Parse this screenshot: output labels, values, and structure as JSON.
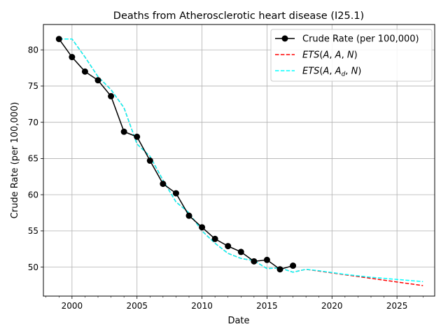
{
  "chart_data": {
    "type": "line",
    "title": "Deaths from Atherosclerotic heart disease (I25.1)",
    "xlabel": "Date",
    "ylabel": "Crude Rate (per 100,000)",
    "xlim": [
      1997.8,
      2027.9
    ],
    "ylim": [
      46.0,
      83.5
    ],
    "grid": true,
    "legend": "top-right",
    "xticks": [
      2000,
      2005,
      2010,
      2015,
      2020,
      2025
    ],
    "yticks": [
      50,
      55,
      60,
      65,
      70,
      75,
      80
    ],
    "series": [
      {
        "name": "Crude Rate (per 100,000)",
        "color": "#000000",
        "style": "solid-markers",
        "x": [
          1999,
          2000,
          2001,
          2002,
          2003,
          2004,
          2005,
          2006,
          2007,
          2008,
          2009,
          2010,
          2011,
          2012,
          2013,
          2014,
          2015,
          2016,
          2017
        ],
        "y": [
          81.5,
          79.0,
          77.0,
          75.8,
          73.6,
          68.7,
          68.0,
          64.7,
          61.5,
          60.2,
          57.1,
          55.5,
          53.9,
          52.9,
          52.1,
          50.8,
          51.0,
          49.7,
          50.2
        ]
      },
      {
        "name": "ETS(A, A, N)",
        "color": "#ff0000",
        "style": "dashed",
        "x": [
          1999,
          2000,
          2001,
          2002,
          2003,
          2004,
          2005,
          2006,
          2007,
          2008,
          2009,
          2010,
          2011,
          2012,
          2013,
          2014,
          2015,
          2016,
          2017,
          2018,
          2019,
          2020,
          2021,
          2022,
          2023,
          2024,
          2025,
          2026,
          2027
        ],
        "y": [
          81.5,
          81.5,
          79.0,
          76.3,
          74.5,
          72.0,
          67.0,
          65.3,
          62.0,
          59.0,
          57.5,
          55.0,
          53.3,
          51.9,
          51.2,
          50.9,
          49.8,
          49.9,
          49.3,
          49.7,
          49.45,
          49.2,
          48.95,
          48.7,
          48.45,
          48.2,
          47.95,
          47.7,
          47.45
        ]
      },
      {
        "name": "ETS(A, A_d, N)",
        "color": "#00ffff",
        "style": "dashed",
        "x": [
          1999,
          2000,
          2001,
          2002,
          2003,
          2004,
          2005,
          2006,
          2007,
          2008,
          2009,
          2010,
          2011,
          2012,
          2013,
          2014,
          2015,
          2016,
          2017,
          2018,
          2019,
          2020,
          2021,
          2022,
          2023,
          2024,
          2025,
          2026,
          2027
        ],
        "y": [
          81.5,
          81.5,
          79.0,
          76.3,
          74.5,
          72.0,
          67.0,
          65.3,
          62.0,
          59.0,
          57.5,
          55.0,
          53.3,
          51.9,
          51.2,
          50.9,
          49.8,
          49.9,
          49.3,
          49.7,
          49.5,
          49.25,
          49.0,
          48.8,
          48.6,
          48.45,
          48.3,
          48.15,
          48.0
        ]
      }
    ]
  }
}
